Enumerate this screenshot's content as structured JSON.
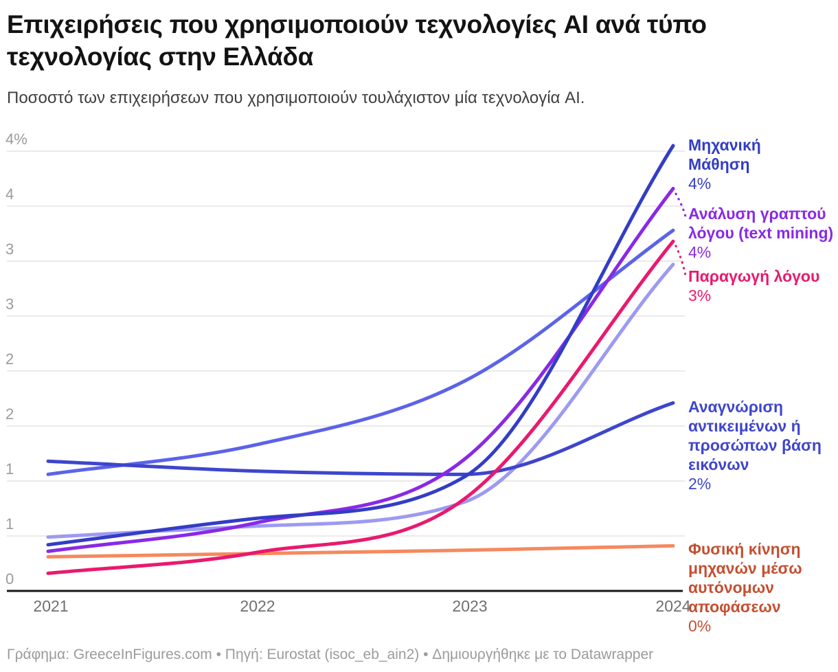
{
  "header": {
    "title": "Επιχειρήσεις που χρησιμοποιούν τεχνολογίες AI ανά τύπο τεχνολογίας στην Ελλάδα",
    "subtitle": "Ποσοστό των επιχειρήσεων που χρησιμοποιούν τουλάχιστον μία τεχνολογία AI."
  },
  "footer": {
    "credit": "Γράφημα: GreeceInFigures.com • Πηγή: Eurostat (isoc_eb_ain2) • Δημιουργήθηκε με το Datawrapper"
  },
  "colors": {
    "background": "#ffffff",
    "title": "#131313",
    "subtitle": "#3f3f3f",
    "grid": "#e4e4e4",
    "axis": "#17171b",
    "y_tick_label": "#9b9b9b",
    "x_tick_label": "#6f6f6f",
    "footer": "#9b9b9b"
  },
  "chart_data": {
    "type": "line",
    "title": "Επιχειρήσεις που χρησιμοποιούν τεχνολογίες AI ανά τύπο τεχνολογίας στην Ελλάδα",
    "subtitle": "Ποσοστό των επιχειρήσεων που χρησιμοποιούν τουλάχιστον μία τεχνολογία AI.",
    "xlabel": "",
    "ylabel": "%",
    "x": [
      2021,
      2022,
      2023,
      2024
    ],
    "x_tick_labels": [
      "2021",
      "2022",
      "2023",
      "2024"
    ],
    "y_axis": {
      "min": 0,
      "max": 4,
      "grid_interval": 0.5,
      "tick_labels_top_to_bottom": [
        "4%",
        "4",
        "3",
        "3",
        "2",
        "2",
        "1",
        "1",
        "0"
      ]
    },
    "grid": true,
    "legend_position": "right-edge-direct-labels",
    "series": [
      {
        "name": "Μηχανική Μάθηση",
        "end_label": "4%",
        "label_visible": true,
        "color": "#333dc6",
        "values": [
          0.42,
          0.66,
          1.04,
          4.05
        ]
      },
      {
        "name": "Ανάλυση γραπτού λόγου (text mining)",
        "end_label": "4%",
        "label_visible": true,
        "color": "#8929e6",
        "values": [
          0.36,
          0.62,
          1.2,
          3.66
        ]
      },
      {
        "name": "",
        "end_label": "",
        "label_visible": false,
        "color": "#5c63e8",
        "values": [
          1.06,
          1.33,
          1.91,
          3.28
        ]
      },
      {
        "name": "Παραγωγή λόγου",
        "end_label": "3%",
        "label_visible": true,
        "color": "#e81a6e",
        "values": [
          0.16,
          0.35,
          0.84,
          3.18
        ]
      },
      {
        "name": "",
        "end_label": "",
        "label_visible": false,
        "color": "#9c9af2",
        "values": [
          0.49,
          0.59,
          0.81,
          2.97
        ]
      },
      {
        "name": "Αναγνώριση αντικειμένων ή προσώπων βάση εικόνων",
        "end_label": "2%",
        "label_visible": true,
        "color": "#3e45cd",
        "values": [
          1.18,
          1.09,
          1.06,
          1.71
        ]
      },
      {
        "name": "Φυσική κίνηση μηχανών μέσω αυτόνομων αποφάσεων",
        "end_label": "0%",
        "label_visible": true,
        "color": "#f5895e",
        "label_color": "#c44f31",
        "values": [
          0.31,
          0.34,
          0.37,
          0.41
        ]
      }
    ]
  }
}
